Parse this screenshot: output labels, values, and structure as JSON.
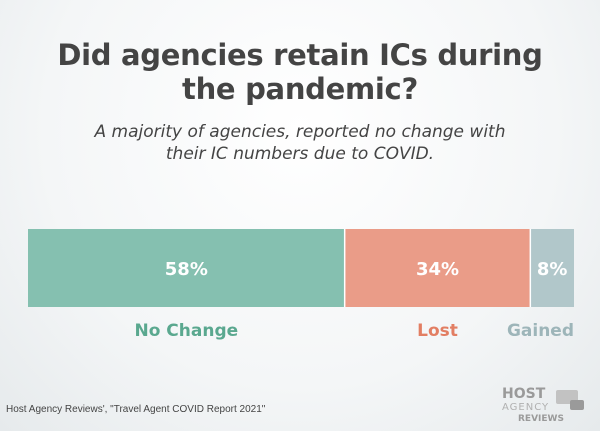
{
  "header": {
    "title_line1": "Did agencies retain ICs during",
    "title_line2": "the pandemic?",
    "subtitle_line1": "A majority of agencies, reported no change with",
    "subtitle_line2": "their IC numbers due to COVID."
  },
  "chart_data": {
    "type": "bar",
    "orientation": "horizontal-stacked",
    "categories": [
      "No Change",
      "Lost",
      "Gained"
    ],
    "values": [
      58,
      34,
      8
    ],
    "value_labels": [
      "58%",
      "34%",
      "8%"
    ],
    "colors": [
      "#85c0b0",
      "#ea9c88",
      "#b1c7ca"
    ],
    "label_colors": [
      "#5aa88f",
      "#e27e63",
      "#9db5b9"
    ],
    "title": "Did agencies retain ICs during the pandemic?",
    "ylim": [
      0,
      100
    ]
  },
  "footer": {
    "source": "Host Agency Reviews', \"Travel Agent COVID Report 2021\"",
    "logo_line1": "HOST",
    "logo_line2": "AGENCY",
    "logo_line3": "REVIEWS",
    "logo_color": "#9a9a9a"
  }
}
